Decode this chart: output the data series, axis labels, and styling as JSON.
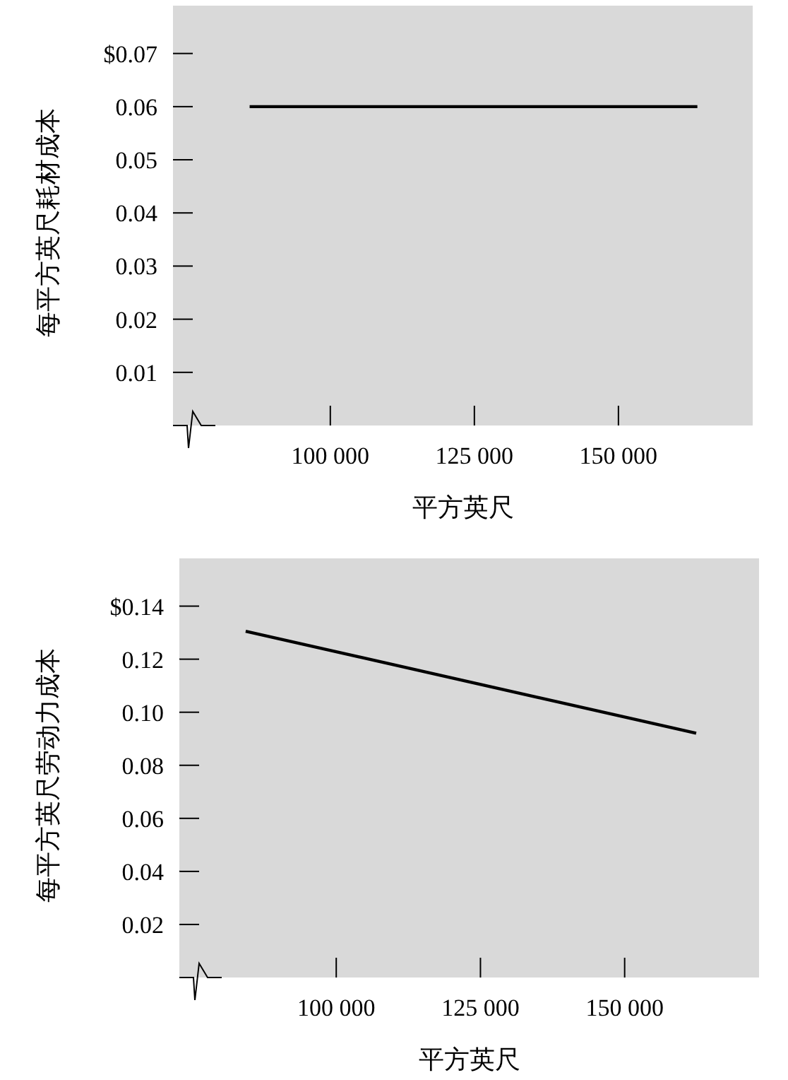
{
  "chart_data": [
    {
      "type": "line",
      "xlabel": "平方英尺",
      "ylabel": "每平方英尺耗材成本",
      "x": [
        86000,
        163700
      ],
      "values": [
        0.06,
        0.06
      ],
      "color": "#000000",
      "xlim": [
        72700,
        173300
      ],
      "ylim": [
        0,
        0.079
      ],
      "xticks": [
        {
          "value": 100000,
          "label": "100 000"
        },
        {
          "value": 125000,
          "label": "125 000"
        },
        {
          "value": 150000,
          "label": "150 000"
        }
      ],
      "yticks": [
        {
          "value": 0.01,
          "label": "0.01"
        },
        {
          "value": 0.02,
          "label": "0.02"
        },
        {
          "value": 0.03,
          "label": "0.03"
        },
        {
          "value": 0.04,
          "label": "0.04"
        },
        {
          "value": 0.05,
          "label": "0.05"
        },
        {
          "value": 0.06,
          "label": "0.06"
        },
        {
          "value": 0.07,
          "label": "$0.07"
        }
      ]
    },
    {
      "type": "line",
      "xlabel": "平方英尺",
      "ylabel": "每平方英尺劳动力成本",
      "x": [
        84300,
        162400
      ],
      "values": [
        0.1305,
        0.0921
      ],
      "color": "#000000",
      "xlim": [
        72800,
        173300
      ],
      "ylim": [
        0,
        0.158
      ],
      "xticks": [
        {
          "value": 100000,
          "label": "100 000"
        },
        {
          "value": 125000,
          "label": "125 000"
        },
        {
          "value": 150000,
          "label": "150 000"
        }
      ],
      "yticks": [
        {
          "value": 0.02,
          "label": "0.02"
        },
        {
          "value": 0.04,
          "label": "0.04"
        },
        {
          "value": 0.06,
          "label": "0.06"
        },
        {
          "value": 0.08,
          "label": "0.08"
        },
        {
          "value": 0.1,
          "label": "0.10"
        },
        {
          "value": 0.12,
          "label": "0.12"
        },
        {
          "value": 0.14,
          "label": "$0.14"
        }
      ]
    }
  ]
}
